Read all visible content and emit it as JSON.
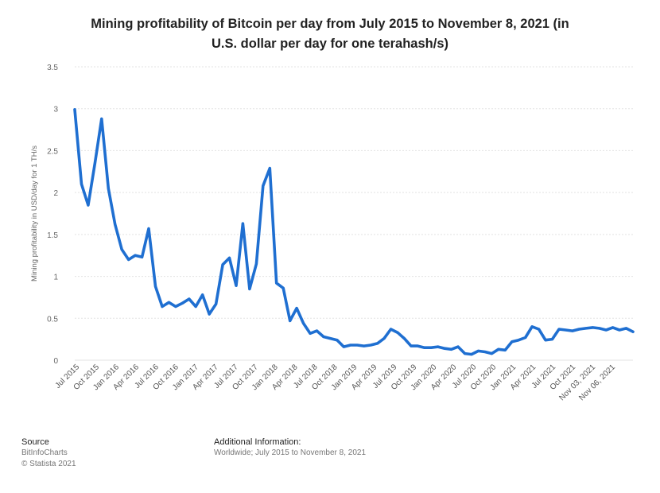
{
  "chart_data": {
    "type": "line",
    "title": "Mining profitability of Bitcoin per day from July 2015 to November 8, 2021 (in U.S. dollar per day for one terahash/s)",
    "title_lines": [
      "Mining profitability of Bitcoin per day from July 2015 to November 8, 2021 (in",
      "U.S. dollar per day for one terahash/s)"
    ],
    "ylabel": "Mining profitability in USD/day for 1 TH/s",
    "xlabel": "",
    "ylim": [
      0,
      3.5
    ],
    "yticks": [
      "0",
      "0.5",
      "1",
      "1.5",
      "2",
      "2.5",
      "3",
      "3.5"
    ],
    "xticks": [
      "Jul 2015",
      "Oct 2015",
      "Jan 2016",
      "Apr 2016",
      "Jul 2016",
      "Oct 2016",
      "Jan 2017",
      "Apr 2017",
      "Jul 2017",
      "Oct 2017",
      "Jan 2018",
      "Apr 2018",
      "Jul 2018",
      "Oct 2018",
      "Jan 2019",
      "Apr 2019",
      "Jul 2019",
      "Oct 2019",
      "Jan 2020",
      "Apr 2020",
      "Jul 2020",
      "Oct 2020",
      "Jan 2021",
      "Apr 2021",
      "Jul 2021",
      "Oct 2021",
      "Nov 03, 2021",
      "Nov 06, 2021"
    ],
    "grid": true,
    "color": "#1f6fd1",
    "series": [
      {
        "values": [
          2.99,
          2.1,
          1.85,
          2.35,
          2.88,
          2.05,
          1.62,
          1.32,
          1.2,
          1.25,
          1.23,
          1.57,
          0.88,
          0.64,
          0.69,
          0.64,
          0.68,
          0.73,
          0.64,
          0.78,
          0.55,
          0.67,
          1.14,
          1.22,
          0.89,
          1.63,
          0.85,
          1.15,
          2.08,
          2.29,
          0.92,
          0.86,
          0.47,
          0.62,
          0.44,
          0.32,
          0.35,
          0.28,
          0.26,
          0.24,
          0.16,
          0.18,
          0.18,
          0.17,
          0.18,
          0.2,
          0.26,
          0.37,
          0.33,
          0.26,
          0.17,
          0.17,
          0.15,
          0.15,
          0.16,
          0.14,
          0.13,
          0.16,
          0.08,
          0.07,
          0.11,
          0.1,
          0.08,
          0.13,
          0.12,
          0.22,
          0.24,
          0.27,
          0.4,
          0.37,
          0.24,
          0.25,
          0.37,
          0.36,
          0.35,
          0.37,
          0.38,
          0.39,
          0.38,
          0.36,
          0.39,
          0.36,
          0.38,
          0.34
        ]
      }
    ]
  },
  "footer": {
    "source_label": "Source",
    "source_lines": [
      "BitInfoCharts",
      "© Statista 2021"
    ],
    "info_label": "Additional Information:",
    "info_text": "Worldwide; July 2015 to November 8, 2021"
  }
}
